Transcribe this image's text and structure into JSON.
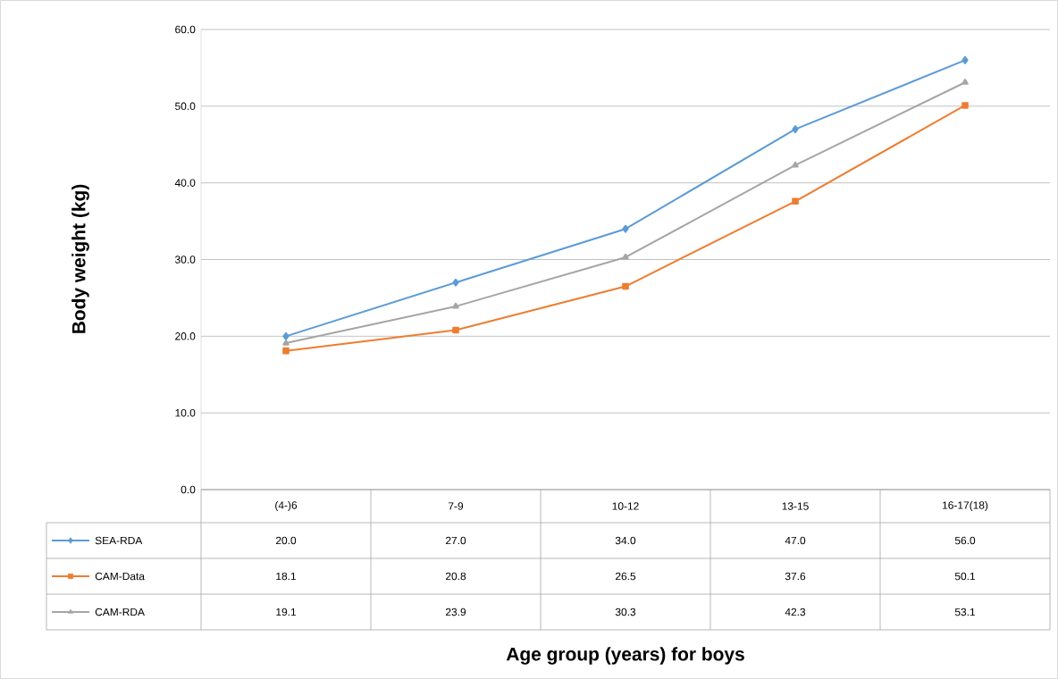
{
  "chart_data": {
    "type": "line",
    "annotations": [
      "Age group (years) for boys"
    ],
    "ylabel": "Body weight (kg)",
    "categories": [
      "(4-)6",
      "7-9",
      "10-12",
      "13-15",
      "16-17(18)"
    ],
    "series": [
      {
        "name": "SEA-RDA",
        "color": "#5b9bd5",
        "marker": "diamond",
        "values": [
          20.0,
          27.0,
          34.0,
          47.0,
          56.0
        ],
        "value_labels": [
          "20.0",
          "27.0",
          "34.0",
          "47.0",
          "56.0"
        ]
      },
      {
        "name": "CAM-Data",
        "color": "#ed7d31",
        "marker": "square",
        "values": [
          18.1,
          20.8,
          26.5,
          37.6,
          50.1
        ],
        "value_labels": [
          "18.1",
          "20.8",
          "26.5",
          "37.6",
          "50.1"
        ]
      },
      {
        "name": "CAM-RDA",
        "color": "#a5a5a5",
        "marker": "triangle",
        "values": [
          19.1,
          23.9,
          30.3,
          42.3,
          53.1
        ],
        "value_labels": [
          "19.1",
          "23.9",
          "30.3",
          "42.3",
          "53.1"
        ]
      }
    ],
    "ylim": [
      0,
      60
    ],
    "yticks": [
      {
        "value": 0,
        "label": "0.0"
      },
      {
        "value": 10,
        "label": "10.0"
      },
      {
        "value": 20,
        "label": "20.0"
      },
      {
        "value": 30,
        "label": "30.0"
      },
      {
        "value": 40,
        "label": "40.0"
      },
      {
        "value": 50,
        "label": "50.0"
      },
      {
        "value": 60,
        "label": "60.0"
      }
    ],
    "grid": "y",
    "legend": "bottom left",
    "line_style": "solid"
  }
}
